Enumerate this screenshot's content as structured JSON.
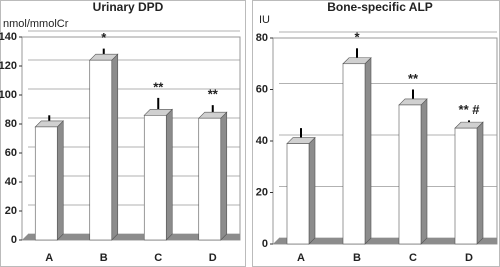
{
  "chart_data": [
    {
      "type": "bar",
      "title": "Urinary DPD",
      "ylabel": "nmol/mmolCr",
      "categories": [
        "A",
        "B",
        "C",
        "D"
      ],
      "values": [
        78,
        124,
        86,
        84
      ],
      "errors": [
        8,
        8,
        12,
        9
      ],
      "annotations": [
        null,
        "*",
        "**",
        "**"
      ],
      "color": "#ffffff",
      "side_color": "#8c8c8c",
      "ylim": [
        0,
        140
      ],
      "yticks": [
        0,
        20,
        40,
        60,
        80,
        100,
        120,
        140
      ],
      "grid": true
    },
    {
      "type": "bar",
      "title": "Bone-specific ALP",
      "ylabel": "IU",
      "categories": [
        "A",
        "B",
        "C",
        "D"
      ],
      "values": [
        39,
        70,
        54,
        45
      ],
      "errors": [
        6,
        6,
        6,
        3
      ],
      "annotations": [
        null,
        "*",
        "**",
        "** #"
      ],
      "color": "#ffffff",
      "side_color": "#8c8c8c",
      "ylim": [
        0,
        80
      ],
      "yticks": [
        0,
        20,
        40,
        60,
        80
      ],
      "grid": true
    }
  ]
}
